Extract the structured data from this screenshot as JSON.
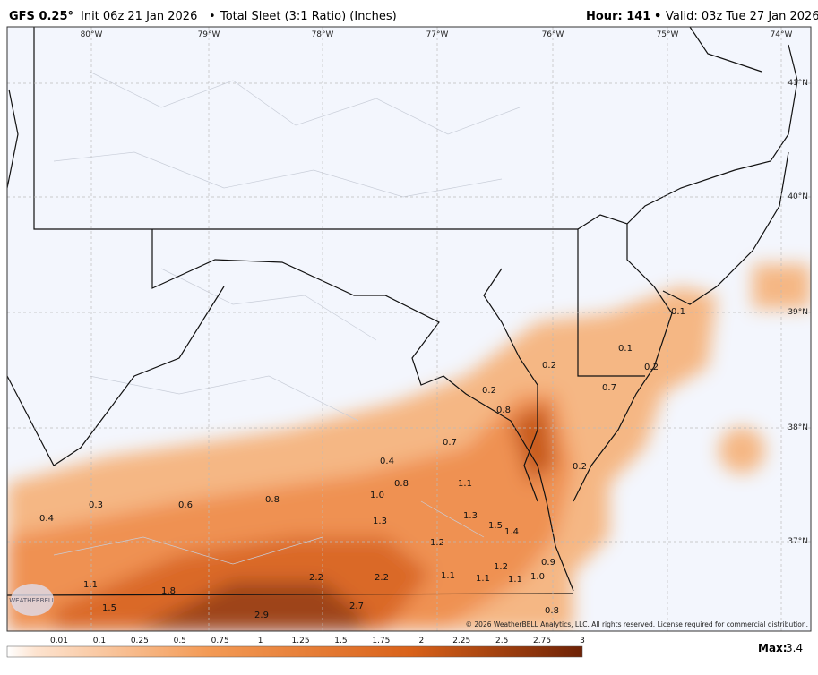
{
  "header": {
    "model": "GFS 0.25°",
    "run": "Init 06z 21 Jan 2026",
    "product": "Total Sleet (3:1 Ratio) (Inches)",
    "separator": "•",
    "hour": "Hour: 141",
    "valid": "Valid: 03z Tue 27 Jan 2026"
  },
  "map": {
    "longitudes": [
      "80°W",
      "79°W",
      "78°W",
      "77°W",
      "76°W",
      "75°W",
      "74°W"
    ],
    "latitudes": [
      "41°N",
      "40°N",
      "39°N",
      "38°N",
      "37°N"
    ],
    "labels": [
      "0.1",
      "0.1",
      "0.2",
      "0.7",
      "0.2",
      "0.2",
      "0.8",
      "0.7",
      "0.4",
      "0.2",
      "0.8",
      "1.1",
      "0.4",
      "0.3",
      "0.6",
      "0.8",
      "1.0",
      "1.3",
      "1.3",
      "1.5",
      "1.4",
      "1.2",
      "0.9",
      "1.2",
      "1.1",
      "1.1",
      "1.1",
      "1.0",
      "2.2",
      "2.2",
      "1.1",
      "1.8",
      "1.5",
      "2.7",
      "2.9",
      "0.8"
    ],
    "copyright": "© 2026 WeatherBELL Analytics, LLC. All rights reserved. License required for commercial distribution.",
    "logo": "WEATHERBELL"
  },
  "colorbar": {
    "ticks": [
      "0.01",
      "0.1",
      "0.25",
      "0.5",
      "0.75",
      "1",
      "1.25",
      "1.5",
      "1.75",
      "2",
      "2.25",
      "2.5",
      "2.75",
      "3"
    ],
    "max_label": "Max:",
    "max": "3.4"
  }
}
